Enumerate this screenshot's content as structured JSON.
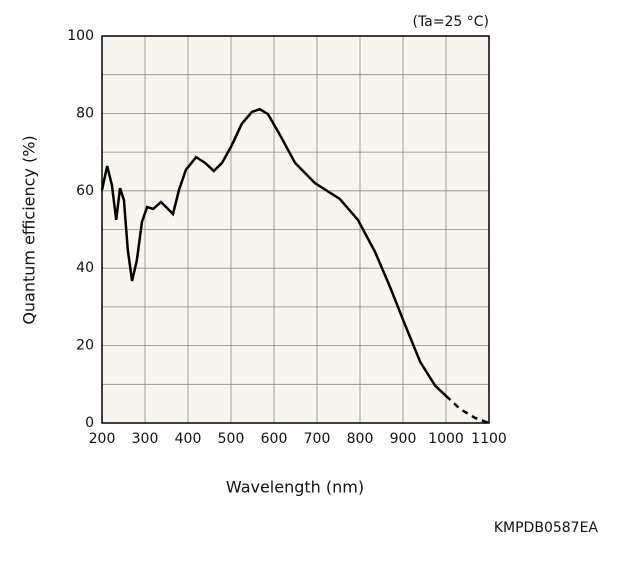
{
  "chart_data": {
    "type": "line",
    "annotation": "(Ta=25 °C)",
    "x_label": "Wavelength (nm)",
    "y_label": "Quantum efficiency (%)",
    "footer": "KMPDB0587EA",
    "xlim": [
      200,
      1100
    ],
    "xticks": [
      200,
      300,
      400,
      500,
      600,
      700,
      800,
      900,
      1000,
      1100
    ],
    "ylim": [
      0,
      100
    ],
    "yticks": [
      0,
      20,
      40,
      60,
      80,
      100
    ],
    "minor_yticks": [
      10,
      30,
      50,
      70,
      90
    ],
    "grid": true,
    "series": [
      {
        "color": "#000000",
        "style": "solid",
        "x": [
          200,
          212,
          223,
          233,
          242,
          251,
          260,
          270,
          281,
          293,
          305,
          319,
          337,
          351,
          365,
          379,
          395,
          419,
          440,
          460,
          479,
          502,
          525,
          549,
          567,
          586,
          614,
          649,
          695,
          753,
          795,
          835,
          870,
          905,
          940,
          975,
          1000
        ],
        "values": [
          60.2,
          66.4,
          61.5,
          52.5,
          60.7,
          57.6,
          44.7,
          36.7,
          42,
          52,
          55.8,
          55.3,
          57.1,
          55.6,
          54,
          60.2,
          65.4,
          68.7,
          67.2,
          65.1,
          67.2,
          71.8,
          77.3,
          80.4,
          81.1,
          79.8,
          74.4,
          67.2,
          62,
          57.9,
          52.5,
          44.2,
          35.1,
          25.3,
          15.8,
          9.6,
          7
        ]
      },
      {
        "color": "#000000",
        "style": "dashed",
        "x": [
          1000,
          1033,
          1068,
          1100
        ],
        "values": [
          7,
          3.6,
          1.3,
          0
        ]
      }
    ]
  }
}
